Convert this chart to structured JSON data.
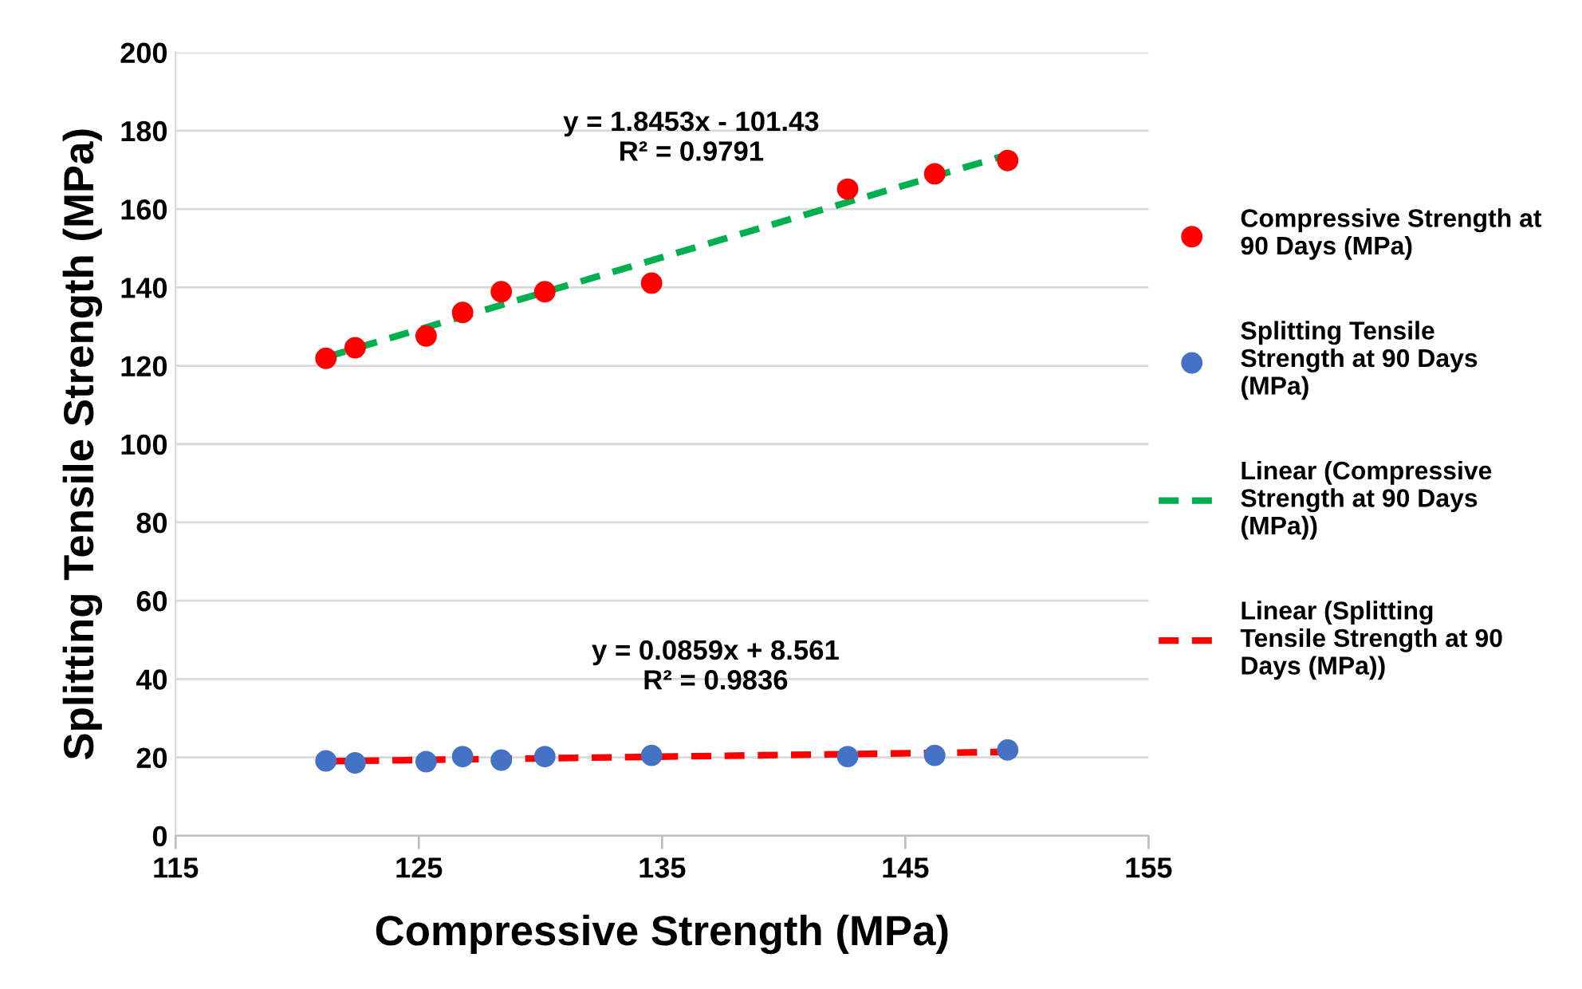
{
  "chart_data": {
    "type": "scatter",
    "xlabel": "Compressive Strength (MPa)",
    "ylabel": "Splitting Tensile Strength (MPa)",
    "xlim": [
      115,
      155
    ],
    "xticks": [
      115,
      125,
      135,
      145,
      155
    ],
    "ylim": [
      0,
      200
    ],
    "yticks": [
      0,
      20,
      40,
      60,
      80,
      100,
      120,
      140,
      160,
      180,
      200
    ],
    "grid": "y",
    "legend": "right",
    "marker": "circle",
    "series": [
      {
        "name": "Compressive Strength at 90 Days (MPa)",
        "color": "#ff0000",
        "x": [
          121.18,
          122.38,
          125.3,
          126.8,
          128.39,
          130.18,
          134.57,
          142.63,
          146.21,
          149.21
        ],
        "values": [
          121.9,
          124.6,
          127.6,
          133.6,
          138.9,
          138.9,
          141.1,
          165.1,
          169.0,
          172.4
        ]
      },
      {
        "name": "Splitting Tensile Strength at 90 Days (MPa)",
        "color": "#4472c4",
        "x": [
          121.18,
          122.38,
          125.3,
          126.8,
          128.39,
          130.18,
          134.57,
          142.63,
          146.21,
          149.21
        ],
        "values": [
          19.1,
          18.6,
          18.9,
          20.2,
          19.3,
          20.2,
          20.5,
          20.2,
          20.5,
          21.9
        ]
      },
      {
        "name": "Linear (Compressive Strength at 90 Days (MPa))",
        "color": "#00b050",
        "type": "line",
        "line_style": "dashed",
        "marker": "none",
        "x": [
          121.18,
          149.21
        ],
        "values": [
          122.2,
          173.9
        ]
      },
      {
        "name": "Linear (Splitting Tensile Strength at 90 Days (MPa))",
        "color": "#ff0000",
        "type": "line",
        "line_style": "dashed",
        "marker": "none",
        "x": [
          121.18,
          149.21
        ],
        "values": [
          19.0,
          21.4
        ]
      }
    ],
    "annotations": [
      "y = 1.8453x - 101.43\nR² = 0.9791",
      "y = 0.0859x + 8.561\nR² = 0.9836"
    ]
  }
}
